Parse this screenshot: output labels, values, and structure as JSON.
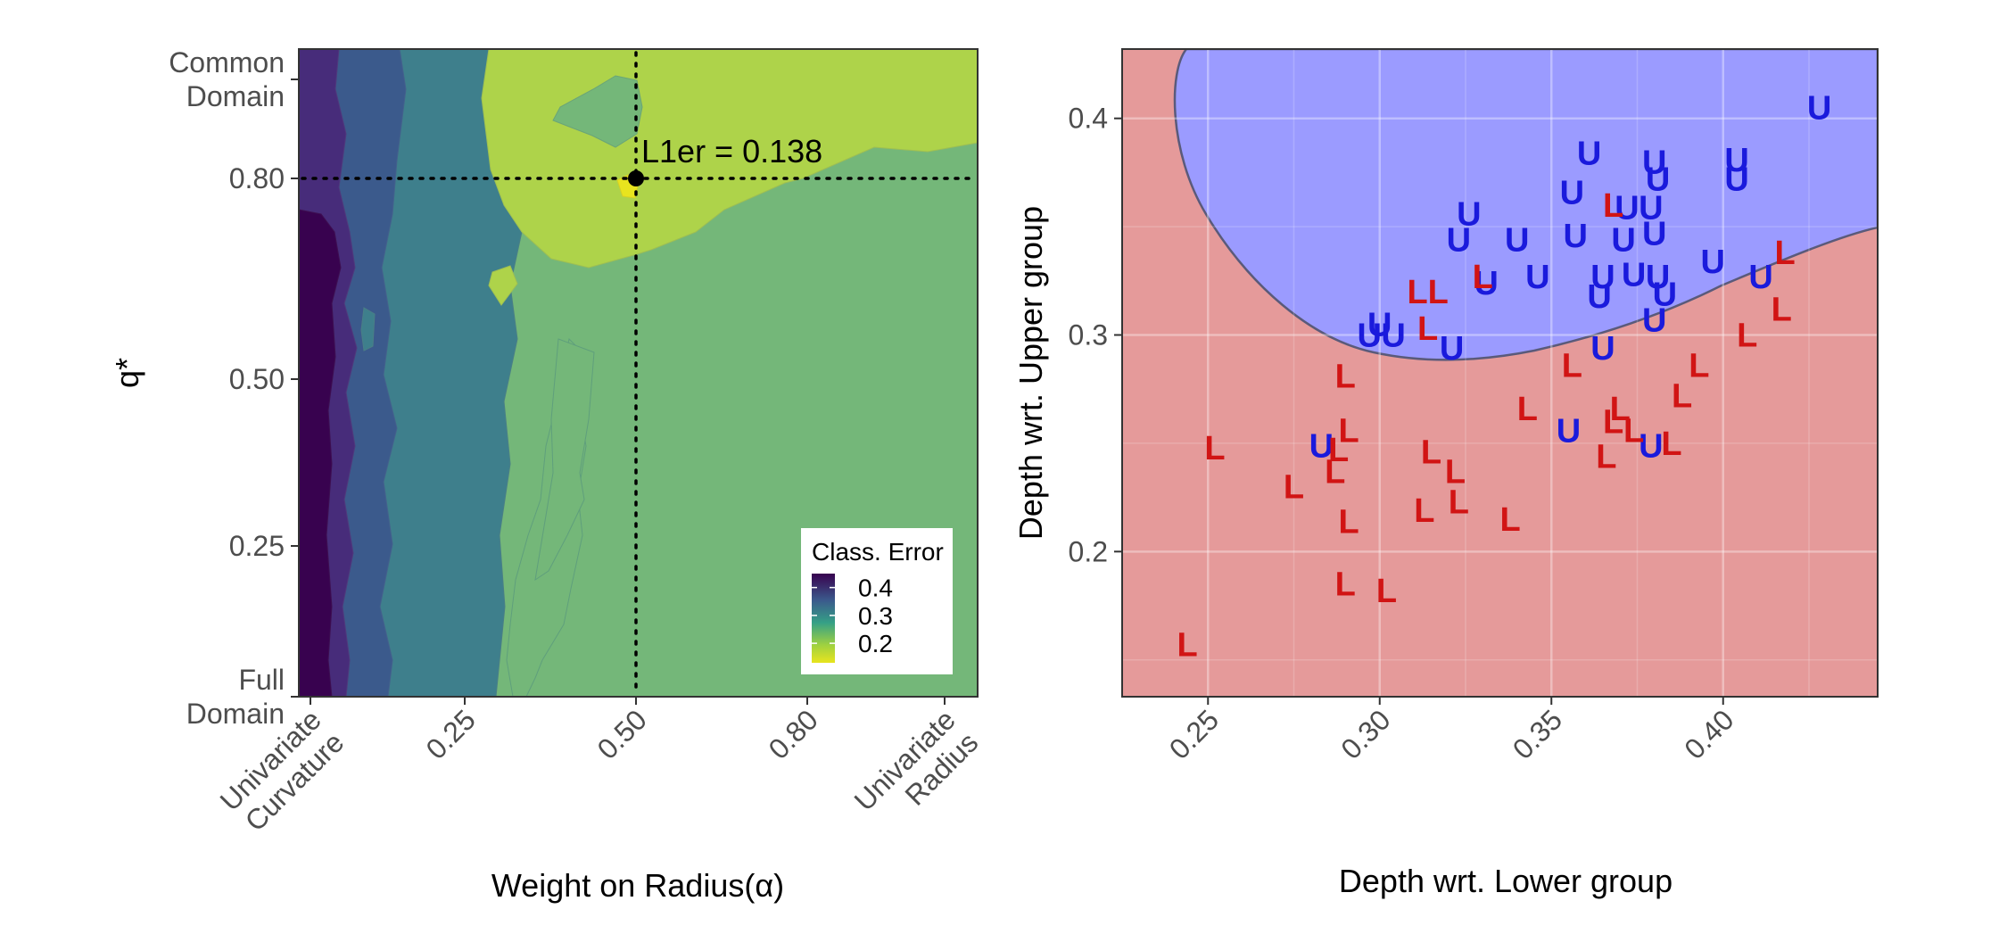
{
  "chart_data": [
    {
      "type": "heatmap",
      "subtype": "filled-contour",
      "xlabel": "Weight on Radius(α)",
      "ylabel": "q*",
      "xlim": [
        0,
        1
      ],
      "ylim": [
        0,
        1
      ],
      "x_ticks": [
        {
          "value": 0.0,
          "label": "Univariate\nCurvature"
        },
        {
          "value": 0.25,
          "label": "0.25"
        },
        {
          "value": 0.5,
          "label": "0.50"
        },
        {
          "value": 0.8,
          "label": "0.80"
        },
        {
          "value": 1.0,
          "label": "Univariate\nRadius"
        }
      ],
      "y_ticks": [
        {
          "value": 0.0,
          "label": "Full\nDomain"
        },
        {
          "value": 0.25,
          "label": "0.25"
        },
        {
          "value": 0.5,
          "label": "0.50"
        },
        {
          "value": 0.8,
          "label": "0.80"
        },
        {
          "value": 1.0,
          "label": "Common\nDomain"
        }
      ],
      "legend": {
        "title": "Class. Error",
        "ticks": [
          0.4,
          0.3,
          0.2
        ],
        "range": [
          0.13,
          0.45
        ],
        "position": "bottom-right"
      },
      "bands": [
        {
          "value": 0.42,
          "x_range": [
            0.0,
            0.04
          ],
          "color": "#38024f"
        },
        {
          "value": 0.38,
          "x_range": [
            0.04,
            0.09
          ],
          "color": "#472c7a"
        },
        {
          "value": 0.32,
          "x_range": [
            0.09,
            0.17
          ],
          "color": "#3b5a8c"
        },
        {
          "value": 0.26,
          "x_range": [
            0.17,
            0.3
          ],
          "color": "#3e7f8c"
        },
        {
          "value": 0.22,
          "x_range": [
            0.3,
            1.0
          ],
          "color": "#74b779"
        },
        {
          "value": 0.17,
          "region": "upper-middle",
          "color": "#aed34a"
        },
        {
          "value": 0.14,
          "region": "minimum",
          "color": "#e8e41e"
        }
      ],
      "highlight": {
        "x": 0.5,
        "y": 0.8,
        "label": "L1er = 0.138"
      },
      "grid": false
    },
    {
      "type": "scatter",
      "subtype": "classification-dd-plot",
      "xlabel": "Depth wrt. Lower group",
      "ylabel": "Depth wrt. Upper group",
      "xlim": [
        0.225,
        0.445
      ],
      "ylim": [
        0.133,
        0.432
      ],
      "x_ticks": [
        0.25,
        0.3,
        0.35,
        0.4
      ],
      "y_ticks": [
        0.2,
        0.3,
        0.4
      ],
      "grid": true,
      "regions": [
        {
          "name": "Upper region",
          "color": "#9b9bff"
        },
        {
          "name": "Lower region",
          "color": "#e59a9a"
        }
      ],
      "series": [
        {
          "label": "U",
          "color": "#1a1adc",
          "points": [
            [
              0.428,
              0.405
            ],
            [
              0.361,
              0.384
            ],
            [
              0.38,
              0.38
            ],
            [
              0.404,
              0.381
            ],
            [
              0.381,
              0.372
            ],
            [
              0.404,
              0.372
            ],
            [
              0.356,
              0.366
            ],
            [
              0.372,
              0.359
            ],
            [
              0.379,
              0.359
            ],
            [
              0.326,
              0.356
            ],
            [
              0.323,
              0.344
            ],
            [
              0.34,
              0.344
            ],
            [
              0.357,
              0.346
            ],
            [
              0.371,
              0.344
            ],
            [
              0.38,
              0.347
            ],
            [
              0.397,
              0.334
            ],
            [
              0.346,
              0.327
            ],
            [
              0.365,
              0.327
            ],
            [
              0.374,
              0.328
            ],
            [
              0.381,
              0.327
            ],
            [
              0.411,
              0.327
            ],
            [
              0.331,
              0.324
            ],
            [
              0.364,
              0.318
            ],
            [
              0.383,
              0.319
            ],
            [
              0.3,
              0.305
            ],
            [
              0.38,
              0.307
            ],
            [
              0.297,
              0.3
            ],
            [
              0.304,
              0.3
            ],
            [
              0.321,
              0.294
            ],
            [
              0.365,
              0.294
            ],
            [
              0.355,
              0.256
            ],
            [
              0.379,
              0.249
            ],
            [
              0.283,
              0.249
            ]
          ]
        },
        {
          "label": "L",
          "color": "#d11414",
          "points": [
            [
              0.418,
              0.338
            ],
            [
              0.368,
              0.36
            ],
            [
              0.33,
              0.327
            ],
            [
              0.311,
              0.32
            ],
            [
              0.317,
              0.32
            ],
            [
              0.417,
              0.312
            ],
            [
              0.314,
              0.303
            ],
            [
              0.407,
              0.3
            ],
            [
              0.393,
              0.286
            ],
            [
              0.356,
              0.286
            ],
            [
              0.29,
              0.281
            ],
            [
              0.388,
              0.272
            ],
            [
              0.343,
              0.266
            ],
            [
              0.37,
              0.266
            ],
            [
              0.368,
              0.26
            ],
            [
              0.291,
              0.256
            ],
            [
              0.374,
              0.256
            ],
            [
              0.385,
              0.25
            ],
            [
              0.252,
              0.248
            ],
            [
              0.288,
              0.247
            ],
            [
              0.315,
              0.246
            ],
            [
              0.366,
              0.244
            ],
            [
              0.287,
              0.237
            ],
            [
              0.322,
              0.237
            ],
            [
              0.275,
              0.23
            ],
            [
              0.323,
              0.223
            ],
            [
              0.313,
              0.219
            ],
            [
              0.338,
              0.215
            ],
            [
              0.291,
              0.214
            ],
            [
              0.29,
              0.185
            ],
            [
              0.302,
              0.182
            ],
            [
              0.244,
              0.157
            ]
          ]
        }
      ]
    }
  ]
}
